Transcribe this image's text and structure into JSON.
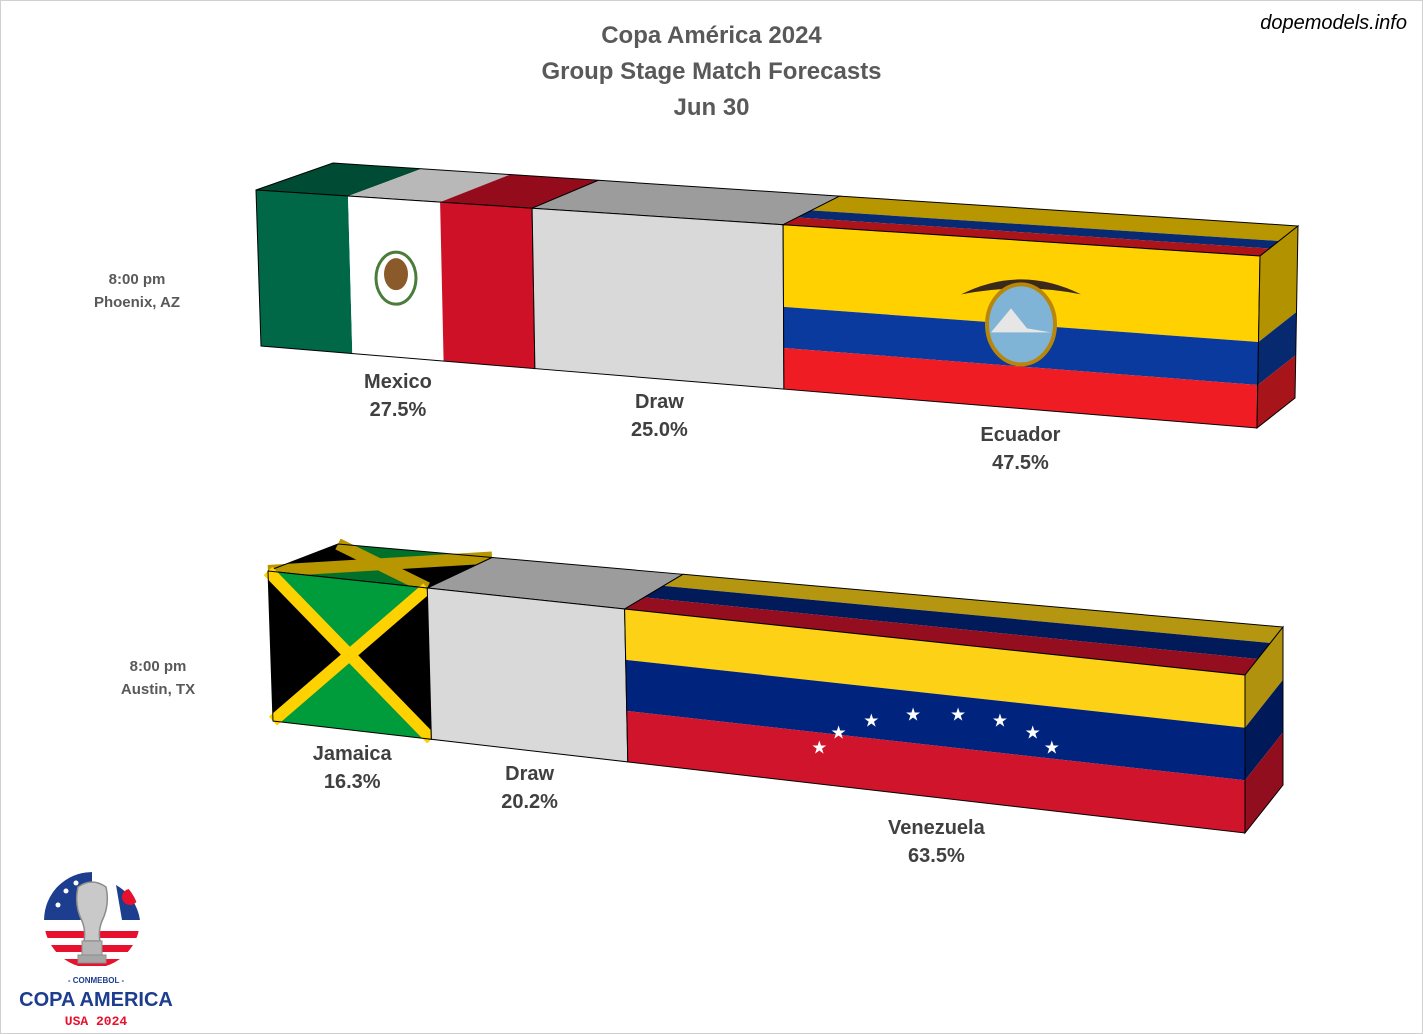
{
  "title": [
    "Copa América 2024",
    "Group Stage Match Forecasts",
    "Jun 30"
  ],
  "source": "dopemodels.info",
  "colors": {
    "title": "#595959",
    "labels": "#404040",
    "draw": "#d9d9d9",
    "mexico": [
      "#006847",
      "#ffffff",
      "#ce1126"
    ],
    "ecuador": [
      "#ffd100",
      "#0a3a9e",
      "#ef1c24"
    ],
    "jamaica": [
      "#009b3a",
      "#fed100",
      "#000000"
    ],
    "venezuela": [
      "#fcd116",
      "#00247d",
      "#cf142b"
    ]
  },
  "chart_data": {
    "type": "bar",
    "orientation": "horizontal",
    "stacked": true,
    "style": "3d-flag-filled",
    "unit": "%",
    "series_order": [
      "home win",
      "draw",
      "away win"
    ],
    "matches": [
      {
        "time": "8:00 pm",
        "venue": "Phoenix, AZ",
        "outcomes": [
          {
            "label": "Mexico",
            "value": 27.5,
            "value_label": "27.5%",
            "flag": "mexico"
          },
          {
            "label": "Draw",
            "value": 25.0,
            "value_label": "25.0%",
            "flag": "draw"
          },
          {
            "label": "Ecuador",
            "value": 47.5,
            "value_label": "47.5%",
            "flag": "ecuador"
          }
        ]
      },
      {
        "time": "8:00 pm",
        "venue": "Austin, TX",
        "outcomes": [
          {
            "label": "Jamaica",
            "value": 16.3,
            "value_label": "16.3%",
            "flag": "jamaica"
          },
          {
            "label": "Draw",
            "value": 20.2,
            "value_label": "20.2%",
            "flag": "draw"
          },
          {
            "label": "Venezuela",
            "value": 63.5,
            "value_label": "63.5%",
            "flag": "venezuela"
          }
        ]
      }
    ]
  },
  "logo": {
    "org": "- CONMEBOL -",
    "name": "COPA AMERICA",
    "edition": "USA 2024",
    "colors": [
      "#1d3d8f",
      "#e8112d",
      "#ffffff"
    ]
  }
}
